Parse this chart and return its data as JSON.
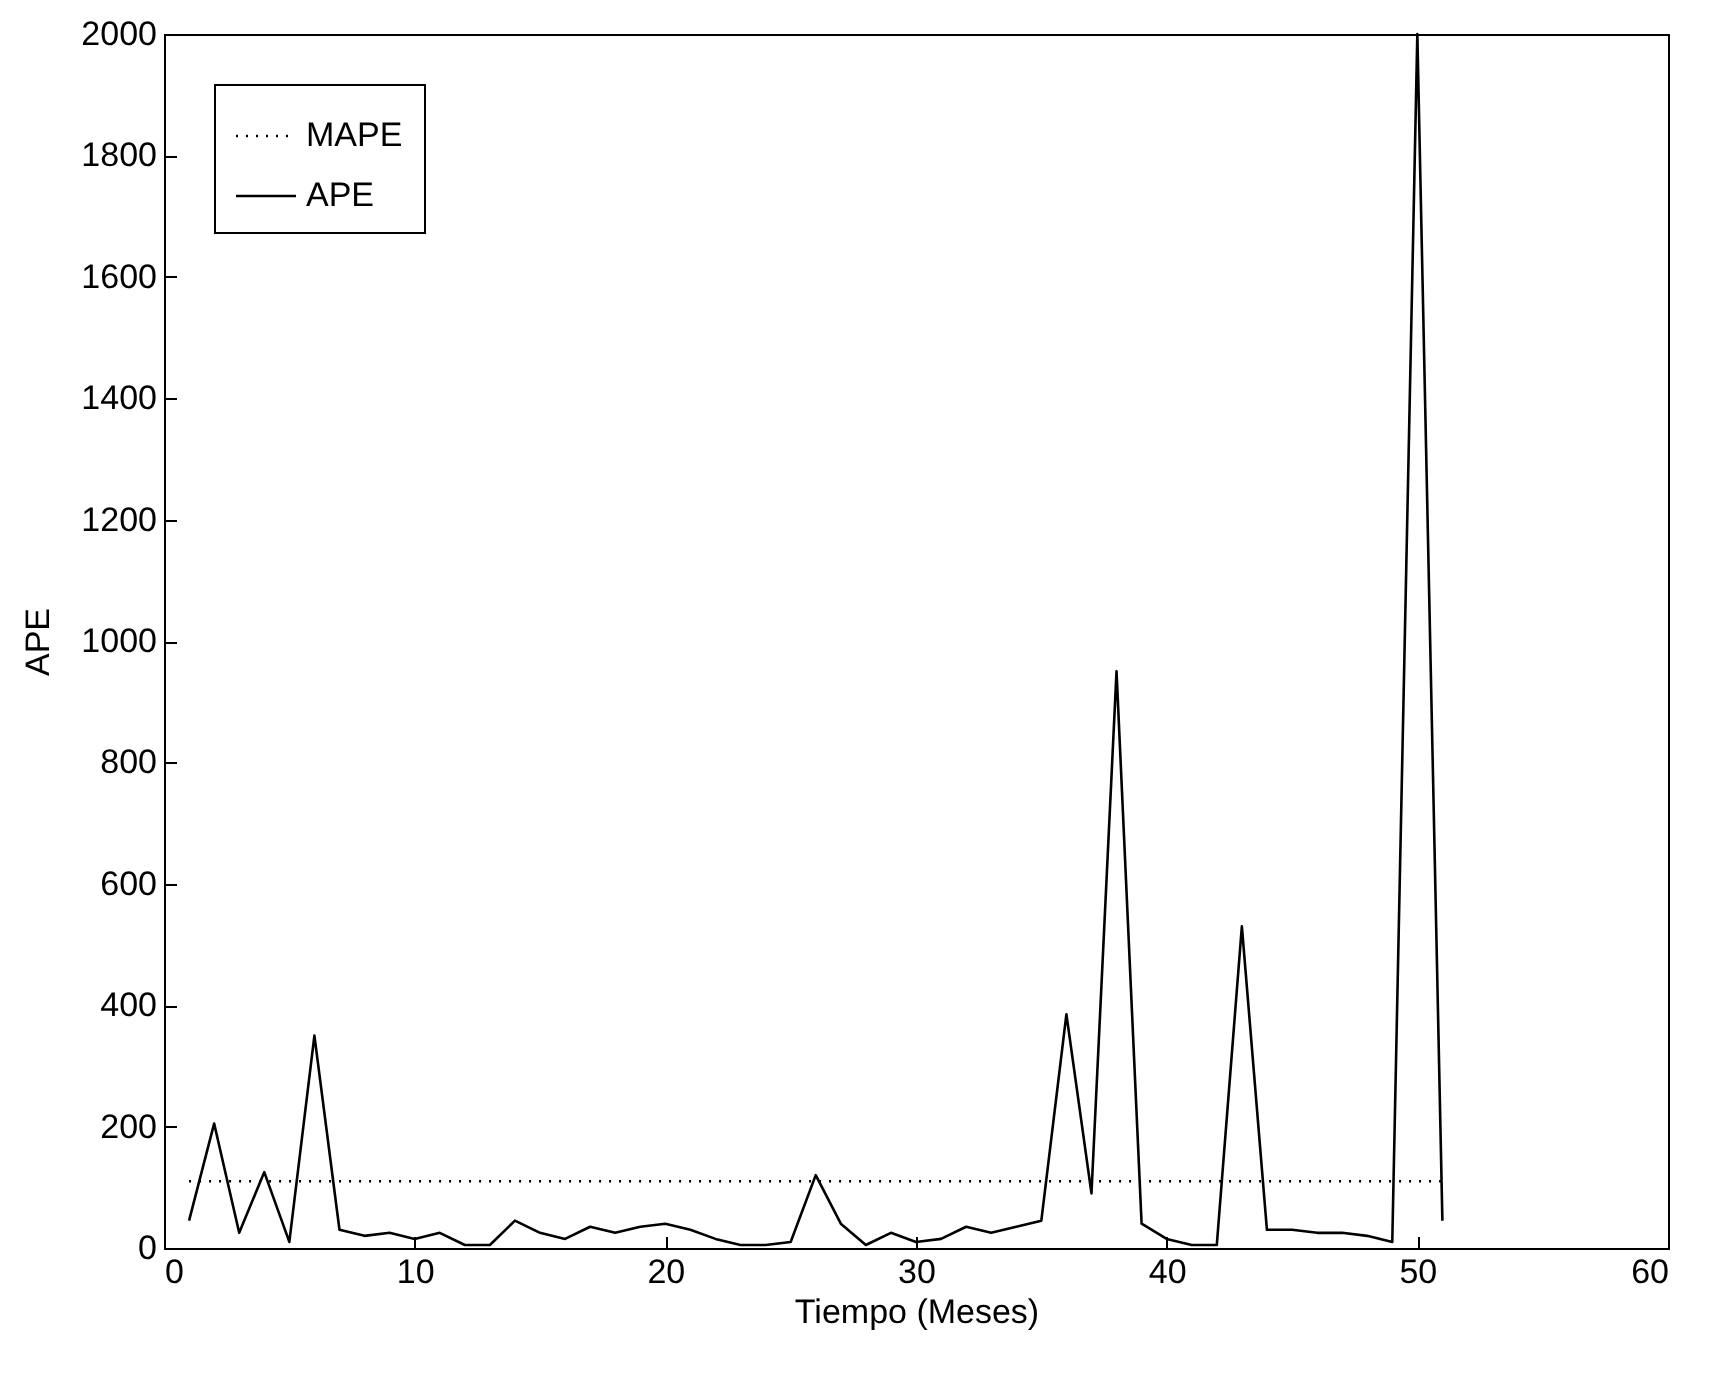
{
  "chart_data": {
    "type": "line",
    "xlabel": "Tiempo (Meses)",
    "ylabel": "APE",
    "xlim": [
      0,
      60
    ],
    "xticks": [
      0,
      10,
      20,
      30,
      40,
      50,
      60
    ],
    "ylim": [
      0,
      2000
    ],
    "yticks": [
      0,
      200,
      400,
      600,
      800,
      1000,
      1200,
      1400,
      1600,
      1800,
      2000
    ],
    "legend": "top left",
    "grid": false,
    "marker": "none",
    "series": [
      {
        "name": "MAPE",
        "color": "#000000",
        "line_style": "dotted",
        "x": [
          1,
          51
        ],
        "values": [
          110,
          110
        ]
      },
      {
        "name": "APE",
        "color": "#000000",
        "line_style": "solid",
        "x": [
          1,
          2,
          3,
          4,
          5,
          6,
          7,
          8,
          9,
          10,
          11,
          12,
          13,
          14,
          15,
          16,
          17,
          18,
          19,
          20,
          21,
          22,
          23,
          24,
          25,
          26,
          27,
          28,
          29,
          30,
          31,
          32,
          33,
          34,
          35,
          36,
          37,
          38,
          39,
          40,
          41,
          42,
          43,
          44,
          45,
          46,
          47,
          48,
          49,
          50,
          51
        ],
        "values": [
          45,
          205,
          25,
          125,
          10,
          350,
          30,
          20,
          25,
          15,
          25,
          5,
          5,
          45,
          25,
          15,
          35,
          25,
          35,
          40,
          30,
          15,
          5,
          5,
          10,
          120,
          40,
          5,
          25,
          10,
          15,
          35,
          25,
          35,
          45,
          385,
          90,
          950,
          40,
          15,
          5,
          5,
          530,
          30,
          30,
          25,
          25,
          20,
          10,
          2000,
          45
        ]
      }
    ]
  }
}
